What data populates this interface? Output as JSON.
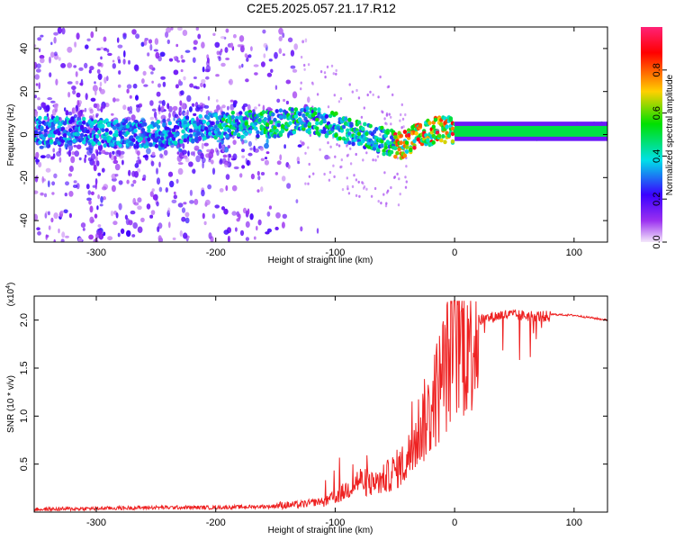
{
  "figure_title": "C2E5.2025.057.21.17.R12",
  "chart_data": [
    {
      "type": "heatmap",
      "title": "C2E5.2025.057.21.17.R12",
      "xlabel": "Height of straight line (km)",
      "ylabel": "Frequency (Hz)",
      "xlim": [
        -352,
        128
      ],
      "ylim": [
        -50,
        50
      ],
      "x_ticks": [
        -300,
        -200,
        -100,
        0,
        100
      ],
      "y_ticks": [
        -40,
        -20,
        0,
        20,
        40
      ],
      "colorbar": {
        "label": "Normalized spectral amplitude",
        "range": [
          0.0,
          1.0
        ],
        "ticks": [
          0.0,
          0.2,
          0.4,
          0.6,
          0.8
        ],
        "colors": [
          "#f4e8fa",
          "#9b30f0",
          "#3a00ff",
          "#00e0e8",
          "#00e000",
          "#ffd000",
          "#ff0000",
          "#ff2277"
        ]
      },
      "ridge_frequency": [
        {
          "x": -340,
          "f": 2
        },
        {
          "x": -300,
          "f": 1
        },
        {
          "x": -250,
          "f": 0
        },
        {
          "x": -200,
          "f": 4
        },
        {
          "x": -150,
          "f": 5
        },
        {
          "x": -120,
          "f": 7
        },
        {
          "x": -100,
          "f": 4
        },
        {
          "x": -80,
          "f": 0
        },
        {
          "x": -60,
          "f": -3
        },
        {
          "x": -45,
          "f": -5
        },
        {
          "x": -30,
          "f": -1
        },
        {
          "x": -15,
          "f": 2
        },
        {
          "x": 0,
          "f": 2
        },
        {
          "x": 50,
          "f": 1
        },
        {
          "x": 128,
          "f": 2
        }
      ]
    },
    {
      "type": "line",
      "xlabel": "Height of straight line (km)",
      "ylabel": "SNR (10 * v/v)",
      "y_multiplier": "(x10",
      "y_multiplier_exp": "4",
      "y_multiplier_close": ")",
      "xlim": [
        -352,
        128
      ],
      "ylim": [
        0.0,
        2.25
      ],
      "x_ticks": [
        -300,
        -200,
        -100,
        0,
        100
      ],
      "y_ticks": [
        0.5,
        1.0,
        1.5,
        2.0
      ],
      "y_tick_labels": [
        "0.5",
        "1.0",
        "1.5",
        "2.0"
      ],
      "color": "#ee2222",
      "series": [
        {
          "name": "SNR",
          "x": [
            -352,
            -300,
            -250,
            -200,
            -160,
            -130,
            -110,
            -95,
            -80,
            -70,
            -60,
            -50,
            -40,
            -30,
            -20,
            -10,
            0,
            20,
            40,
            60,
            80,
            100,
            128
          ],
          "y": [
            0.02,
            0.03,
            0.04,
            0.04,
            0.05,
            0.06,
            0.1,
            0.2,
            0.35,
            0.3,
            0.35,
            0.45,
            0.55,
            0.9,
            1.1,
            1.5,
            1.8,
            2.02,
            2.08,
            2.07,
            2.06,
            2.05,
            2.0
          ]
        }
      ]
    }
  ]
}
